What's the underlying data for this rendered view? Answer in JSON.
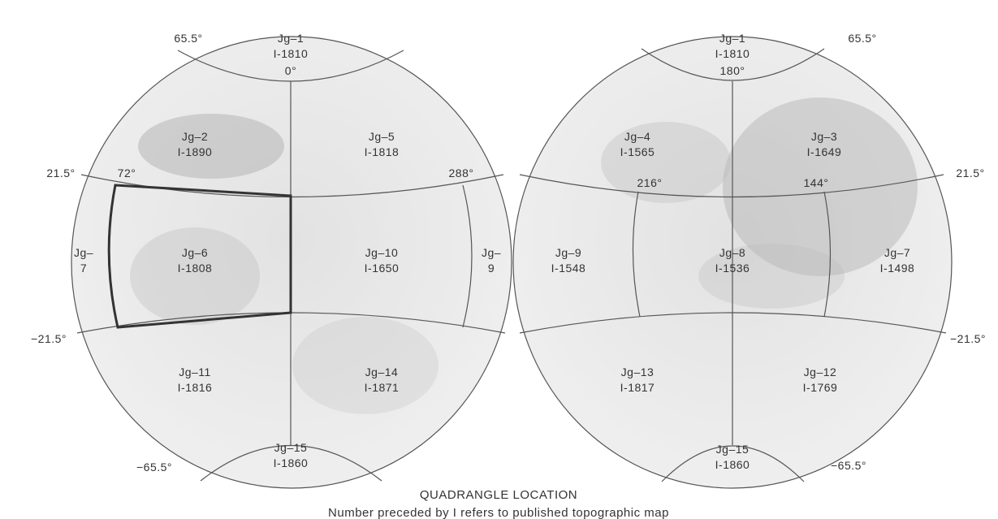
{
  "left_globe": {
    "latitude_labels": [
      "65.5°",
      "21.5°",
      "−21.5°",
      "−65.5°"
    ],
    "longitude_labels": [
      "0°",
      "72°",
      "288°"
    ],
    "quadrangles": [
      {
        "lines": [
          "Jg–1",
          "I-1810"
        ]
      },
      {
        "lines": [
          "Jg–2",
          "I-1890"
        ]
      },
      {
        "lines": [
          "Jg–5",
          "I-1818"
        ]
      },
      {
        "lines": [
          "Jg–",
          "7"
        ]
      },
      {
        "lines": [
          "Jg–6",
          "I-1808"
        ]
      },
      {
        "lines": [
          "Jg–10",
          "I-1650"
        ]
      },
      {
        "lines": [
          "Jg–",
          "9"
        ]
      },
      {
        "lines": [
          "Jg–11",
          "I-1816"
        ]
      },
      {
        "lines": [
          "Jg–14",
          "I-1871"
        ]
      },
      {
        "lines": [
          "Jg–15",
          "I-1860"
        ]
      }
    ]
  },
  "right_globe": {
    "latitude_labels": [
      "65.5°",
      "21.5°",
      "−21.5°",
      "−65.5°"
    ],
    "longitude_labels": [
      "180°",
      "216°",
      "144°"
    ],
    "quadrangles": [
      {
        "lines": [
          "Jg–1",
          "I-1810"
        ]
      },
      {
        "lines": [
          "Jg–4",
          "I-1565"
        ]
      },
      {
        "lines": [
          "Jg–3",
          "I-1649"
        ]
      },
      {
        "lines": [
          "Jg–9",
          "I-1548"
        ]
      },
      {
        "lines": [
          "Jg–8",
          "I-1536"
        ]
      },
      {
        "lines": [
          "Jg–7",
          "I-1498"
        ]
      },
      {
        "lines": [
          "Jg–13",
          "I-1817"
        ]
      },
      {
        "lines": [
          "Jg–12",
          "I-1769"
        ]
      },
      {
        "lines": [
          "Jg–15",
          "I-1860"
        ]
      }
    ]
  },
  "caption": {
    "title": "QUADRANGLE LOCATION",
    "note": "Number preceded by I refers to published topographic map"
  }
}
